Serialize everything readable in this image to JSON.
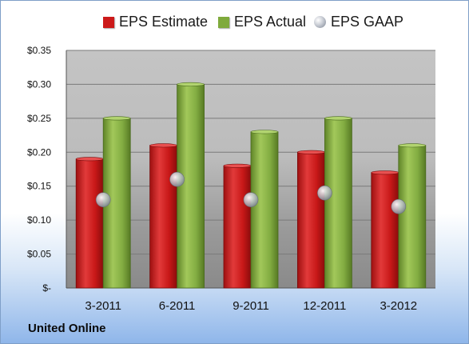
{
  "chart_data": {
    "type": "bar",
    "categories": [
      "3-2011",
      "6-2011",
      "9-2011",
      "12-2011",
      "3-2012"
    ],
    "series": [
      {
        "name": "EPS Estimate",
        "values": [
          0.19,
          0.21,
          0.18,
          0.2,
          0.17
        ],
        "color": "#cc1a1a"
      },
      {
        "name": "EPS Actual",
        "values": [
          0.25,
          0.3,
          0.23,
          0.25,
          0.21
        ],
        "color": "#7faa3c"
      },
      {
        "name": "EPS GAAP",
        "values": [
          0.13,
          0.16,
          0.13,
          0.14,
          0.12
        ],
        "color": "#b9bec8",
        "style": "marker"
      }
    ],
    "ylim": [
      0,
      0.35
    ],
    "yticks": [
      0,
      0.05,
      0.1,
      0.15,
      0.2,
      0.25,
      0.3,
      0.35
    ],
    "ytick_labels": [
      "$-",
      "$0.05",
      "$0.10",
      "$0.15",
      "$0.20",
      "$0.25",
      "$0.30",
      "$0.35"
    ],
    "grid": true,
    "legend_position": "top"
  },
  "footer": {
    "company": "United Online"
  }
}
